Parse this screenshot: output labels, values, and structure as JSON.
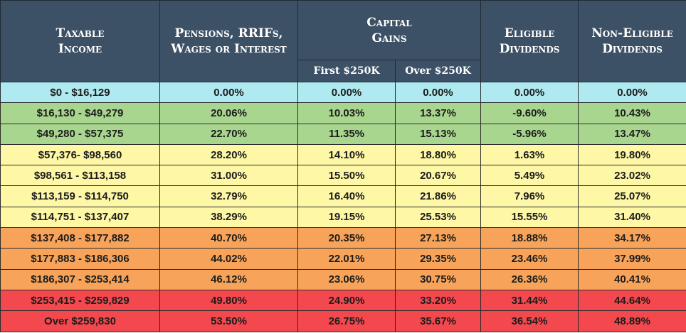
{
  "headers": {
    "taxable_income": [
      "Taxable",
      "Income"
    ],
    "pensions": [
      "Pensions, RRIFs,",
      "Wages or Interest"
    ],
    "capital_gains": [
      "Capital",
      "Gains"
    ],
    "eligible_dividends": [
      "Eligible",
      "Dividends"
    ],
    "non_eligible_dividends": [
      "Non-Eligible",
      "Dividends"
    ],
    "first_250k": "First $250K",
    "over_250k": "Over $250K"
  },
  "rows": [
    {
      "income": "$0 - $16,129",
      "pensions": "0.00%",
      "cg_first": "0.00%",
      "cg_over": "0.00%",
      "eligible": "0.00%",
      "non_eligible": "0.00%",
      "color": "#aeeaf0"
    },
    {
      "income": "$16,130 - $49,279",
      "pensions": "20.06%",
      "cg_first": "10.03%",
      "cg_over": "13.37%",
      "eligible": "-9.60%",
      "non_eligible": "10.43%",
      "color": "#a9d68f"
    },
    {
      "income": "$49,280 - $57,375",
      "pensions": "22.70%",
      "cg_first": "11.35%",
      "cg_over": "15.13%",
      "eligible": "-5.96%",
      "non_eligible": "13.47%",
      "color": "#a9d68f"
    },
    {
      "income": "$57,376- $98,560",
      "pensions": "28.20%",
      "cg_first": "14.10%",
      "cg_over": "18.80%",
      "eligible": "1.63%",
      "non_eligible": "19.80%",
      "color": "#fdf7a6"
    },
    {
      "income": "$98,561 - $113,158",
      "pensions": "31.00%",
      "cg_first": "15.50%",
      "cg_over": "20.67%",
      "eligible": "5.49%",
      "non_eligible": "23.02%",
      "color": "#fdf7a6"
    },
    {
      "income": "$113,159 - $114,750",
      "pensions": "32.79%",
      "cg_first": "16.40%",
      "cg_over": "21.86%",
      "eligible": "7.96%",
      "non_eligible": "25.07%",
      "color": "#fdf7a6"
    },
    {
      "income": "$114,751 - $137,407",
      "pensions": "38.29%",
      "cg_first": "19.15%",
      "cg_over": "25.53%",
      "eligible": "15.55%",
      "non_eligible": "31.40%",
      "color": "#fdf7a6"
    },
    {
      "income": "$137,408 - $177,882",
      "pensions": "40.70%",
      "cg_first": "20.35%",
      "cg_over": "27.13%",
      "eligible": "18.88%",
      "non_eligible": "34.17%",
      "color": "#f7a45a"
    },
    {
      "income": "$177,883 - $186,306",
      "pensions": "44.02%",
      "cg_first": "22.01%",
      "cg_over": "29.35%",
      "eligible": "23.46%",
      "non_eligible": "37.99%",
      "color": "#f7a45a"
    },
    {
      "income": "$186,307 - $253,414",
      "pensions": "46.12%",
      "cg_first": "23.06%",
      "cg_over": "30.75%",
      "eligible": "26.36%",
      "non_eligible": "40.41%",
      "color": "#f7a45a"
    },
    {
      "income": "$253,415 - $259,829",
      "pensions": "49.80%",
      "cg_first": "24.90%",
      "cg_over": "33.20%",
      "eligible": "31.44%",
      "non_eligible": "44.64%",
      "color": "#f3484d"
    },
    {
      "income": "Over $259,830",
      "pensions": "53.50%",
      "cg_first": "26.75%",
      "cg_over": "35.67%",
      "eligible": "36.54%",
      "non_eligible": "48.89%",
      "color": "#f3484d"
    }
  ]
}
